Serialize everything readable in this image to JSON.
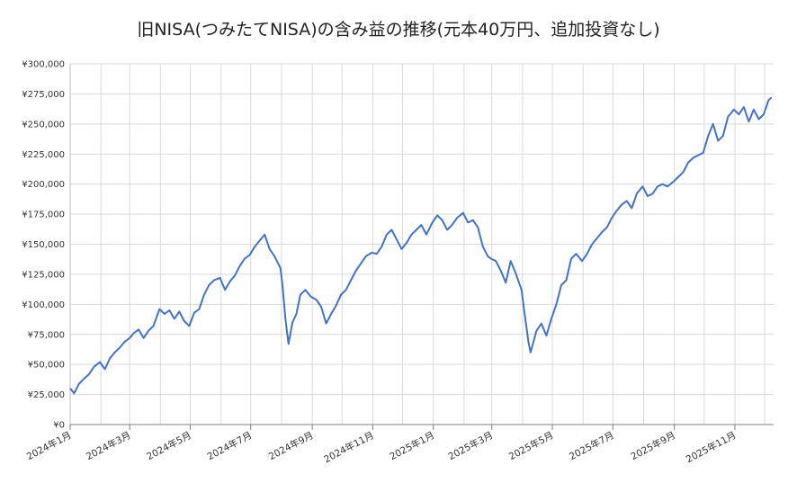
{
  "chart_data": {
    "type": "line",
    "title": "旧NISA(つみたてNISA)の含み益の推移(元本40万円、追加投資なし)",
    "xlabel": "",
    "ylabel": "",
    "y_tick_labels": [
      "¥0",
      "¥25,000",
      "¥50,000",
      "¥75,000",
      "¥100,000",
      "¥125,000",
      "¥150,000",
      "¥175,000",
      "¥200,000",
      "¥225,000",
      "¥250,000",
      "¥275,000",
      "¥300,000"
    ],
    "x_tick_labels": [
      "2024年1月",
      "2024年3月",
      "2024年5月",
      "2024年7月",
      "2024年9月",
      "2024年11月",
      "2025年1月",
      "2025年3月",
      "2025年5月",
      "2025年7月",
      "2025年9月",
      "2025年11月"
    ],
    "ylim": [
      0,
      300000
    ],
    "xlim": [
      "2024-01-01",
      "2025-12-10"
    ],
    "grid": true,
    "line_color": "#4472C4",
    "series": [
      {
        "x": [
          "2024-01-01",
          "2024-01-05",
          "2024-01-10",
          "2024-01-15",
          "2024-01-20",
          "2024-01-25",
          "2024-01-31",
          "2024-02-05",
          "2024-02-10",
          "2024-02-15",
          "2024-02-20",
          "2024-02-25",
          "2024-03-01",
          "2024-03-05",
          "2024-03-10",
          "2024-03-15",
          "2024-03-20",
          "2024-03-25",
          "2024-03-31",
          "2024-04-05",
          "2024-04-10",
          "2024-04-15",
          "2024-04-20",
          "2024-04-25",
          "2024-04-30",
          "2024-05-05",
          "2024-05-10",
          "2024-05-15",
          "2024-05-20",
          "2024-05-25",
          "2024-05-31",
          "2024-06-05",
          "2024-06-10",
          "2024-06-15",
          "2024-06-20",
          "2024-06-25",
          "2024-06-30",
          "2024-07-05",
          "2024-07-10",
          "2024-07-15",
          "2024-07-20",
          "2024-07-25",
          "2024-07-31",
          "2024-08-02",
          "2024-08-05",
          "2024-08-08",
          "2024-08-12",
          "2024-08-16",
          "2024-08-20",
          "2024-08-25",
          "2024-08-31",
          "2024-09-05",
          "2024-09-10",
          "2024-09-15",
          "2024-09-20",
          "2024-09-25",
          "2024-09-30",
          "2024-10-05",
          "2024-10-10",
          "2024-10-15",
          "2024-10-20",
          "2024-10-25",
          "2024-10-31",
          "2024-11-05",
          "2024-11-10",
          "2024-11-15",
          "2024-11-20",
          "2024-11-25",
          "2024-11-30",
          "2024-12-05",
          "2024-12-10",
          "2024-12-15",
          "2024-12-20",
          "2024-12-25",
          "2024-12-31",
          "2025-01-05",
          "2025-01-10",
          "2025-01-15",
          "2025-01-20",
          "2025-01-25",
          "2025-01-31",
          "2025-02-05",
          "2025-02-10",
          "2025-02-15",
          "2025-02-20",
          "2025-02-25",
          "2025-02-28",
          "2025-03-05",
          "2025-03-10",
          "2025-03-15",
          "2025-03-20",
          "2025-03-25",
          "2025-03-31",
          "2025-04-03",
          "2025-04-07",
          "2025-04-09",
          "2025-04-15",
          "2025-04-20",
          "2025-04-25",
          "2025-04-30",
          "2025-05-05",
          "2025-05-10",
          "2025-05-15",
          "2025-05-20",
          "2025-05-25",
          "2025-05-31",
          "2025-06-05",
          "2025-06-10",
          "2025-06-15",
          "2025-06-20",
          "2025-06-25",
          "2025-06-30",
          "2025-07-05",
          "2025-07-10",
          "2025-07-15",
          "2025-07-20",
          "2025-07-25",
          "2025-07-31",
          "2025-08-05",
          "2025-08-10",
          "2025-08-15",
          "2025-08-20",
          "2025-08-25",
          "2025-08-31",
          "2025-09-05",
          "2025-09-10",
          "2025-09-15",
          "2025-09-20",
          "2025-09-25",
          "2025-09-30",
          "2025-10-05",
          "2025-10-10",
          "2025-10-15",
          "2025-10-20",
          "2025-10-25",
          "2025-10-31",
          "2025-11-05",
          "2025-11-10",
          "2025-11-15",
          "2025-11-20",
          "2025-11-25",
          "2025-11-30",
          "2025-12-05",
          "2025-12-08"
        ],
        "values": [
          30000,
          26000,
          34000,
          38000,
          42000,
          48000,
          52000,
          46000,
          55000,
          60000,
          64000,
          69000,
          72000,
          76000,
          79000,
          72000,
          78000,
          82000,
          96000,
          92000,
          95000,
          88000,
          94000,
          86000,
          82000,
          93000,
          96000,
          108000,
          116000,
          120000,
          122000,
          112000,
          119000,
          124000,
          132000,
          138000,
          141000,
          148000,
          153000,
          158000,
          146000,
          140000,
          130000,
          116000,
          88000,
          67000,
          85000,
          92000,
          108000,
          112000,
          106000,
          104000,
          98000,
          84000,
          92000,
          99000,
          108000,
          112000,
          120000,
          128000,
          134000,
          140000,
          143000,
          142000,
          148000,
          158000,
          162000,
          154000,
          146000,
          151000,
          158000,
          162000,
          166000,
          158000,
          168000,
          174000,
          170000,
          162000,
          166000,
          172000,
          176000,
          168000,
          170000,
          164000,
          148000,
          140000,
          138000,
          136000,
          128000,
          118000,
          136000,
          126000,
          112000,
          92000,
          68000,
          60000,
          78000,
          84000,
          74000,
          88000,
          100000,
          116000,
          120000,
          138000,
          142000,
          136000,
          142000,
          150000,
          155000,
          160000,
          164000,
          172000,
          178000,
          183000,
          186000,
          180000,
          192000,
          198000,
          190000,
          192000,
          198000,
          200000,
          198000,
          202000,
          206000,
          210000,
          218000,
          222000,
          224000,
          226000,
          240000,
          250000,
          236000,
          240000,
          256000,
          262000,
          258000,
          264000,
          252000,
          262000,
          254000,
          258000,
          270000,
          272000
        ]
      }
    ]
  }
}
